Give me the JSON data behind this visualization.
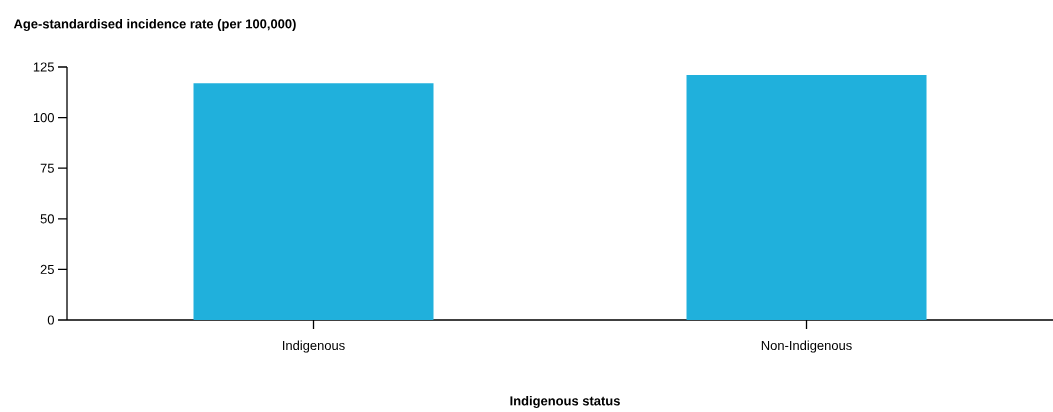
{
  "chart_data": {
    "type": "bar",
    "title": "Age-standardised incidence rate (per 100,000)",
    "xlabel": "Indigenous status",
    "categories": [
      "Indigenous",
      "Non-Indigenous"
    ],
    "values": [
      117,
      121
    ],
    "color": "#20b0dc",
    "ylim": [
      0,
      125
    ],
    "yticks": [
      0,
      25,
      50,
      75,
      100,
      125
    ]
  }
}
